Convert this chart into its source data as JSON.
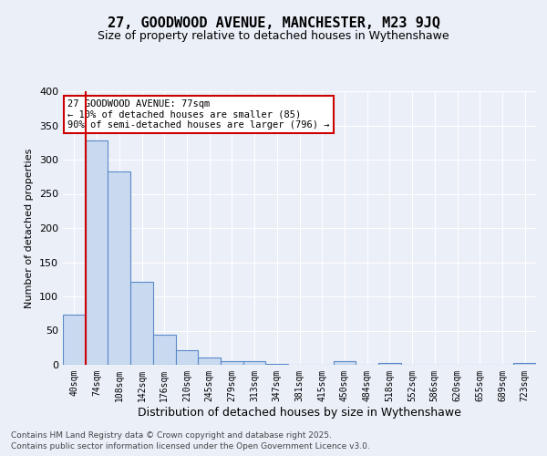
{
  "title": "27, GOODWOOD AVENUE, MANCHESTER, M23 9JQ",
  "subtitle": "Size of property relative to detached houses in Wythenshawe",
  "xlabel": "Distribution of detached houses by size in Wythenshawe",
  "ylabel": "Number of detached properties",
  "bar_labels": [
    "40sqm",
    "74sqm",
    "108sqm",
    "142sqm",
    "176sqm",
    "210sqm",
    "245sqm",
    "279sqm",
    "313sqm",
    "347sqm",
    "381sqm",
    "415sqm",
    "450sqm",
    "484sqm",
    "518sqm",
    "552sqm",
    "586sqm",
    "620sqm",
    "655sqm",
    "689sqm",
    "723sqm"
  ],
  "bar_values": [
    74,
    328,
    283,
    121,
    44,
    21,
    11,
    5,
    5,
    2,
    0,
    0,
    5,
    0,
    3,
    0,
    0,
    0,
    0,
    0,
    3
  ],
  "bar_color": "#c9d9f0",
  "bar_edge_color": "#5b8ac9",
  "vline_x_index": 1,
  "vline_color": "#cc0000",
  "annotation_text": "27 GOODWOOD AVENUE: 77sqm\n← 10% of detached houses are smaller (85)\n90% of semi-detached houses are larger (796) →",
  "annotation_box_color": "#cc0000",
  "annotation_text_color": "#000000",
  "ylim": [
    0,
    400
  ],
  "yticks": [
    0,
    50,
    100,
    150,
    200,
    250,
    300,
    350,
    400
  ],
  "bg_color": "#eaeff8",
  "plot_bg_color": "#eaeff8",
  "grid_color": "#ffffff",
  "footer_line1": "Contains HM Land Registry data © Crown copyright and database right 2025.",
  "footer_line2": "Contains public sector information licensed under the Open Government Licence v3.0."
}
